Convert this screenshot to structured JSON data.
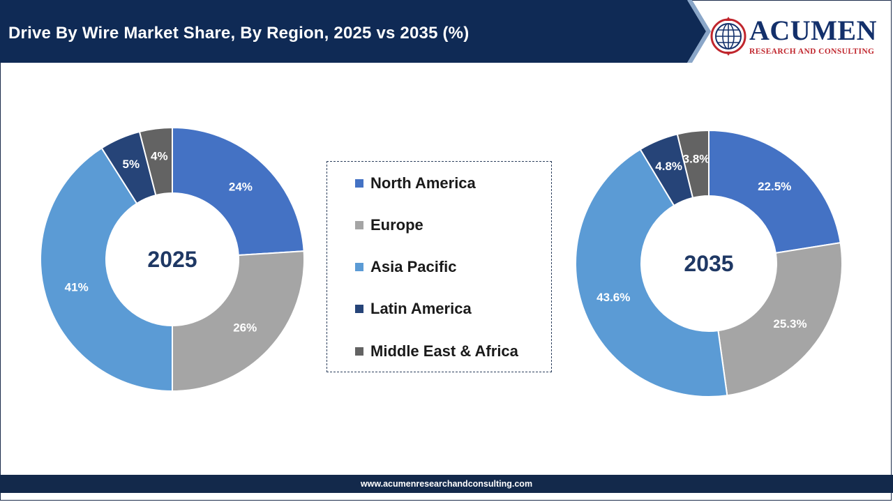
{
  "header": {
    "title": "Drive By Wire Market Share, By Region, 2025 vs 2035 (%)",
    "colors": {
      "bar": "#0f2a55",
      "accent": "#8aa6c8"
    }
  },
  "logo": {
    "word": "ACUMEN",
    "subtitle": "RESEARCH AND CONSULTING",
    "icon": "globe-icon"
  },
  "footer": {
    "url": "www.acumenresearchandconsulting.com"
  },
  "chart_data": {
    "type": "pie",
    "categories": [
      "North America",
      "Europe",
      "Asia Pacific",
      "Latin America",
      "Middle East & Africa"
    ],
    "colors": [
      "#4472c4",
      "#a5a5a5",
      "#5b9bd5",
      "#264478",
      "#636363"
    ],
    "label_colors": [
      "#ffffff",
      "#ffffff",
      "#ffffff",
      "#ffffff",
      "#ffffff"
    ],
    "legend_placement": "center",
    "charts": [
      {
        "center_label": "2025",
        "values": [
          24,
          26,
          41,
          5,
          4
        ],
        "labels": [
          "24%",
          "26%",
          "41%",
          "5%",
          "4%"
        ]
      },
      {
        "center_label": "2035",
        "values": [
          22.5,
          25.3,
          43.6,
          4.8,
          3.8
        ],
        "labels": [
          "22.5%",
          "25.3%",
          "43.6%",
          "4.8%",
          "3.8%"
        ]
      }
    ]
  }
}
